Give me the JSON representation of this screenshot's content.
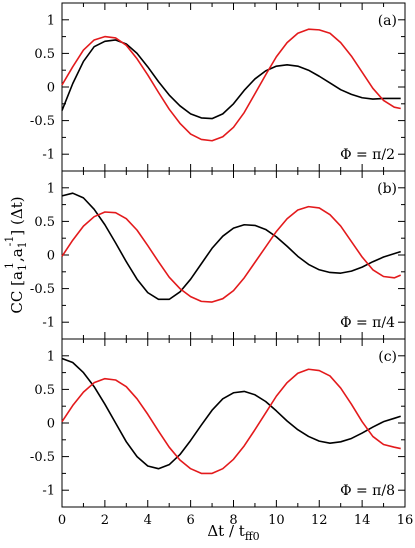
{
  "chart_data": {
    "type": "line",
    "xlabel": "Δt / t",
    "xlabel_sub": "ff0",
    "ylabel_main": "CC [a",
    "ylabel_sub1": "1",
    "ylabel_sup1": "1",
    "ylabel_mid": ",a",
    "ylabel_sub2": "1",
    "ylabel_sup2": "-1",
    "ylabel_tail": "] (Δt)",
    "xlim": [
      0,
      16
    ],
    "ylim": [
      -1.25,
      1.25
    ],
    "x_ticks": [
      "0",
      "2",
      "4",
      "6",
      "8",
      "10",
      "12",
      "14",
      "16"
    ],
    "y_ticks": [
      "1",
      "0.5",
      "0",
      "-0.5",
      "-1"
    ],
    "colors": {
      "black_series": "#000000",
      "red_series": "#e31a1c"
    },
    "panels": [
      {
        "label": "(a)",
        "annotation": "Φ = π/2",
        "series": [
          {
            "color": "#000000",
            "x": [
              0,
              0.5,
              1,
              1.5,
              2,
              2.5,
              3,
              3.5,
              4,
              4.5,
              5,
              5.5,
              6,
              6.5,
              7,
              7.5,
              8,
              8.5,
              9,
              9.5,
              10,
              10.5,
              11,
              11.5,
              12,
              12.5,
              13,
              13.5,
              14,
              14.5,
              15,
              15.5,
              15.8
            ],
            "y": [
              -0.35,
              0.05,
              0.38,
              0.6,
              0.68,
              0.7,
              0.64,
              0.5,
              0.3,
              0.08,
              -0.12,
              -0.28,
              -0.4,
              -0.46,
              -0.47,
              -0.4,
              -0.25,
              -0.05,
              0.12,
              0.24,
              0.31,
              0.33,
              0.31,
              0.25,
              0.16,
              0.06,
              -0.04,
              -0.11,
              -0.16,
              -0.18,
              -0.17,
              -0.17,
              -0.17
            ]
          },
          {
            "color": "#e31a1c",
            "x": [
              0,
              0.5,
              1,
              1.5,
              2,
              2.5,
              3,
              3.5,
              4,
              4.5,
              5,
              5.5,
              6,
              6.5,
              7,
              7.5,
              8,
              8.5,
              9,
              9.5,
              10,
              10.5,
              11,
              11.5,
              12,
              12.5,
              13,
              13.5,
              14,
              14.5,
              15,
              15.5,
              15.8
            ],
            "y": [
              0.03,
              0.3,
              0.55,
              0.7,
              0.75,
              0.73,
              0.62,
              0.42,
              0.18,
              -0.08,
              -0.33,
              -0.54,
              -0.7,
              -0.78,
              -0.8,
              -0.74,
              -0.6,
              -0.38,
              -0.1,
              0.18,
              0.45,
              0.66,
              0.8,
              0.86,
              0.85,
              0.8,
              0.66,
              0.46,
              0.22,
              -0.02,
              -0.2,
              -0.3,
              -0.32
            ]
          }
        ]
      },
      {
        "label": "(b)",
        "annotation": "Φ = π/4",
        "series": [
          {
            "color": "#000000",
            "x": [
              0,
              0.5,
              1,
              1.5,
              2,
              2.5,
              3,
              3.5,
              4,
              4.5,
              5,
              5.5,
              6,
              6.5,
              7,
              7.5,
              8,
              8.5,
              9,
              9.5,
              10,
              10.5,
              11,
              11.5,
              12,
              12.5,
              13,
              13.5,
              14,
              14.5,
              15,
              15.5,
              15.8
            ],
            "y": [
              0.88,
              0.92,
              0.85,
              0.68,
              0.45,
              0.18,
              -0.1,
              -0.36,
              -0.56,
              -0.66,
              -0.66,
              -0.55,
              -0.36,
              -0.13,
              0.1,
              0.28,
              0.4,
              0.45,
              0.44,
              0.38,
              0.27,
              0.13,
              -0.02,
              -0.14,
              -0.22,
              -0.26,
              -0.27,
              -0.24,
              -0.18,
              -0.1,
              -0.03,
              0.02,
              0.05
            ]
          },
          {
            "color": "#e31a1c",
            "x": [
              0,
              0.5,
              1,
              1.5,
              2,
              2.5,
              3,
              3.5,
              4,
              4.5,
              5,
              5.5,
              6,
              6.5,
              7,
              7.5,
              8,
              8.5,
              9,
              9.5,
              10,
              10.5,
              11,
              11.5,
              12,
              12.5,
              13,
              13.5,
              14,
              14.5,
              15,
              15.5,
              15.8
            ],
            "y": [
              -0.02,
              0.22,
              0.43,
              0.57,
              0.64,
              0.63,
              0.54,
              0.37,
              0.14,
              -0.1,
              -0.33,
              -0.5,
              -0.62,
              -0.69,
              -0.7,
              -0.65,
              -0.53,
              -0.34,
              -0.11,
              0.12,
              0.35,
              0.54,
              0.67,
              0.72,
              0.7,
              0.6,
              0.43,
              0.2,
              -0.03,
              -0.22,
              -0.32,
              -0.34,
              -0.3
            ]
          }
        ]
      },
      {
        "label": "(c)",
        "annotation": "Φ = π/8",
        "series": [
          {
            "color": "#000000",
            "x": [
              0,
              0.5,
              1,
              1.5,
              2,
              2.5,
              3,
              3.5,
              4,
              4.5,
              5,
              5.5,
              6,
              6.5,
              7,
              7.5,
              8,
              8.5,
              9,
              9.5,
              10,
              10.5,
              11,
              11.5,
              12,
              12.5,
              13,
              13.5,
              14,
              14.5,
              15,
              15.5,
              15.8
            ],
            "y": [
              0.96,
              0.9,
              0.75,
              0.54,
              0.28,
              0.0,
              -0.28,
              -0.5,
              -0.64,
              -0.68,
              -0.62,
              -0.47,
              -0.26,
              -0.03,
              0.19,
              0.36,
              0.45,
              0.47,
              0.42,
              0.32,
              0.18,
              0.03,
              -0.1,
              -0.2,
              -0.27,
              -0.3,
              -0.28,
              -0.23,
              -0.15,
              -0.06,
              0.02,
              0.07,
              0.1
            ]
          },
          {
            "color": "#e31a1c",
            "x": [
              0,
              0.5,
              1,
              1.5,
              2,
              2.5,
              3,
              3.5,
              4,
              4.5,
              5,
              5.5,
              6,
              6.5,
              7,
              7.5,
              8,
              8.5,
              9,
              9.5,
              10,
              10.5,
              11,
              11.5,
              12,
              12.5,
              13,
              13.5,
              14,
              14.5,
              15,
              15.5,
              15.8
            ],
            "y": [
              0.02,
              0.26,
              0.46,
              0.6,
              0.66,
              0.64,
              0.54,
              0.36,
              0.13,
              -0.12,
              -0.36,
              -0.55,
              -0.68,
              -0.75,
              -0.75,
              -0.68,
              -0.54,
              -0.34,
              -0.1,
              0.15,
              0.4,
              0.6,
              0.74,
              0.8,
              0.78,
              0.7,
              0.52,
              0.28,
              0.02,
              -0.2,
              -0.32,
              -0.36,
              -0.38
            ]
          }
        ]
      }
    ]
  }
}
